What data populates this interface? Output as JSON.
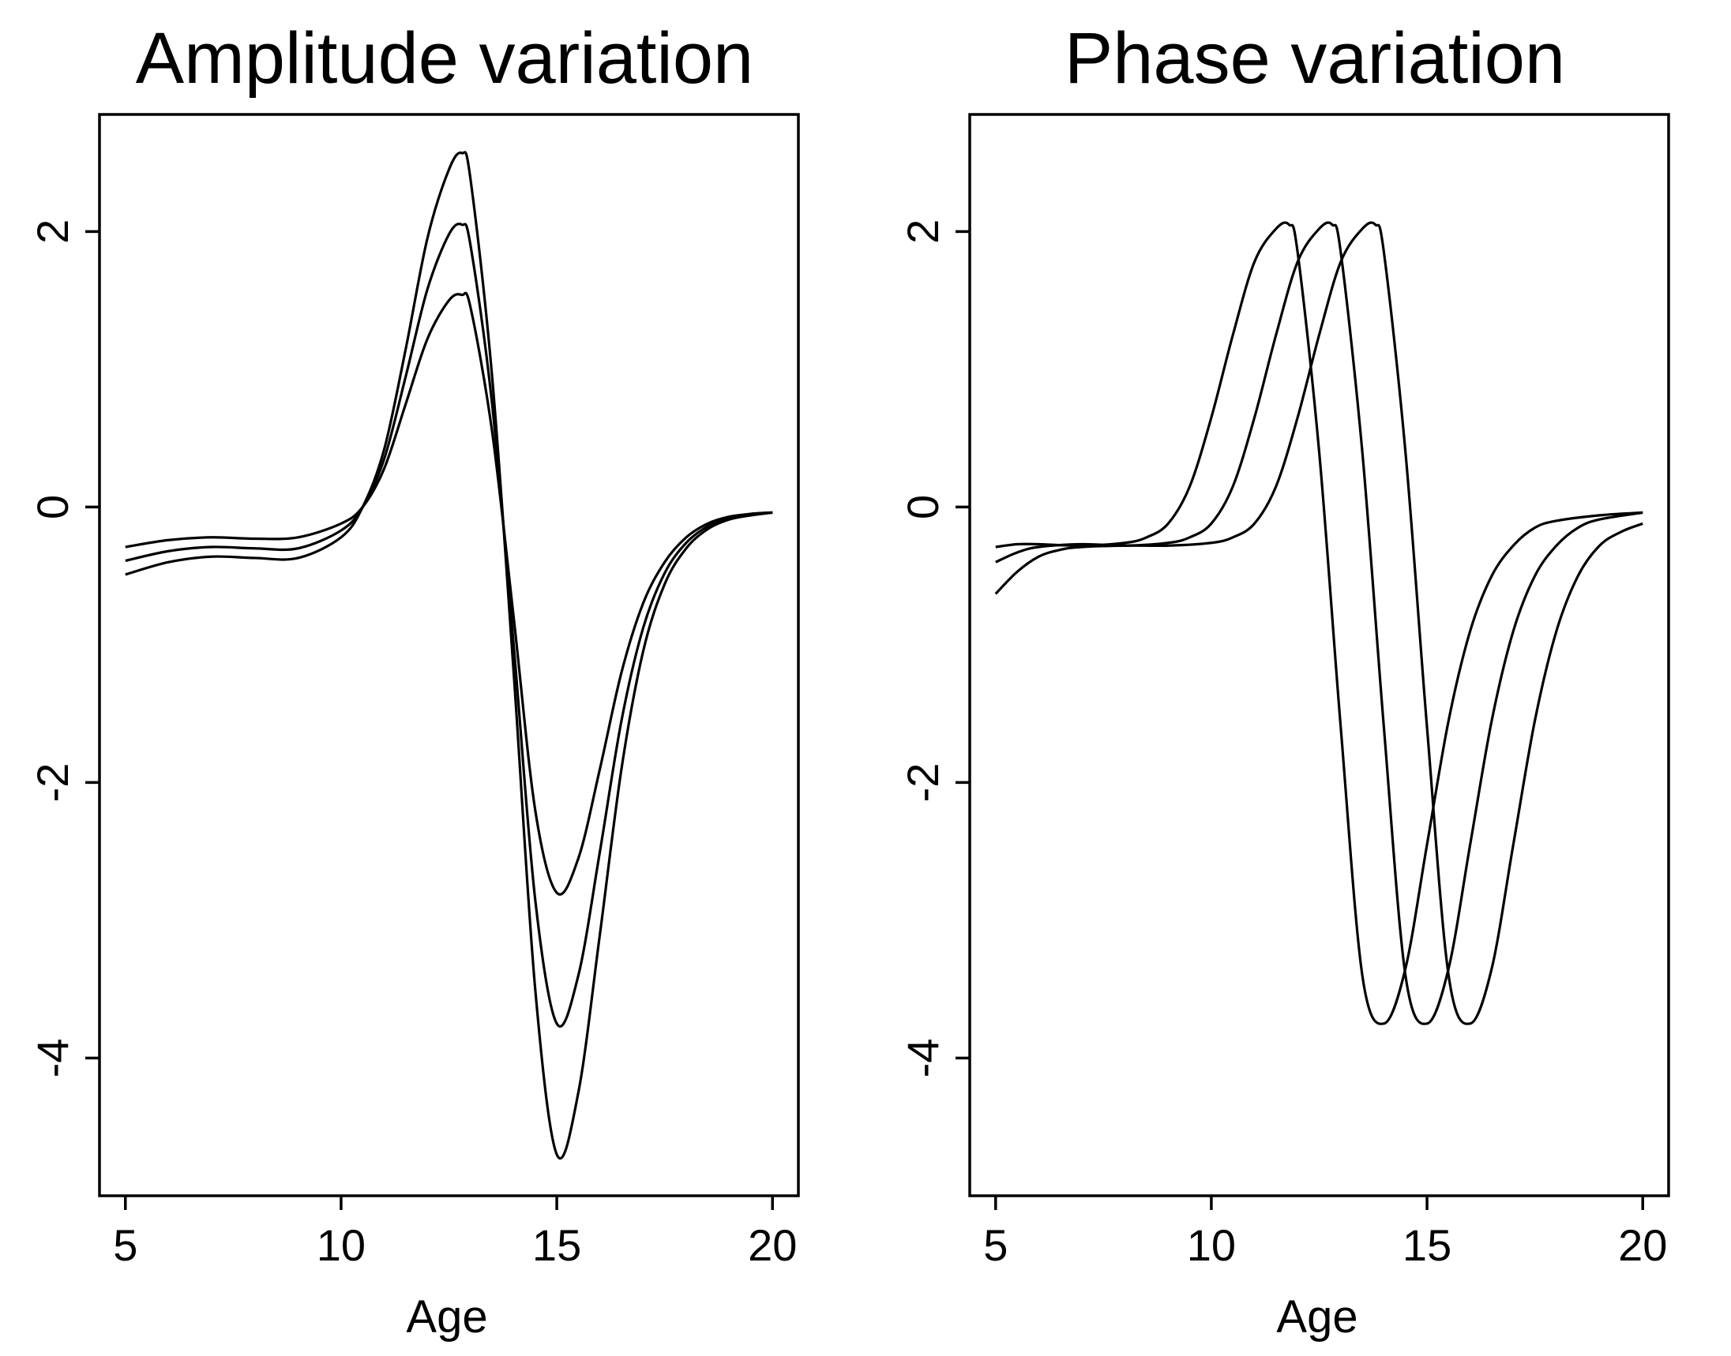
{
  "chart_data": [
    {
      "type": "line",
      "title": "Amplitude variation",
      "xlabel": "Age",
      "ylabel": "",
      "xlim": [
        4.4,
        20.6
      ],
      "ylim": [
        -5.0,
        2.85
      ],
      "xticks": [
        5,
        10,
        15,
        20
      ],
      "xtick_labels": [
        "5",
        "10",
        "15",
        "20"
      ],
      "yticks": [
        2,
        0,
        -2,
        -4
      ],
      "ytick_labels": [
        "2",
        "0",
        "-2",
        "-4"
      ],
      "grid": false,
      "legend": "none",
      "series": [
        {
          "x": [
            5,
            6,
            7,
            8,
            9,
            10,
            10.5,
            11,
            11.5,
            12,
            12.5,
            12.8,
            13,
            13.5,
            14,
            14.5,
            15,
            15.5,
            16,
            16.5,
            17,
            17.5,
            18,
            18.5,
            19,
            19.5,
            20
          ],
          "y": [
            -0.29,
            -0.24,
            -0.22,
            -0.23,
            -0.22,
            -0.12,
            0.0,
            0.28,
            0.75,
            1.22,
            1.5,
            1.54,
            1.45,
            0.55,
            -0.8,
            -2.2,
            -2.8,
            -2.55,
            -1.9,
            -1.2,
            -0.7,
            -0.4,
            -0.22,
            -0.12,
            -0.07,
            -0.05,
            -0.04
          ]
        },
        {
          "x": [
            5,
            6,
            7,
            8,
            9,
            10,
            10.5,
            11,
            11.5,
            12,
            12.5,
            12.8,
            13,
            13.5,
            14,
            14.5,
            15,
            15.5,
            16,
            16.5,
            17,
            17.5,
            18,
            18.5,
            19,
            19.5,
            20
          ],
          "y": [
            -0.39,
            -0.32,
            -0.29,
            -0.3,
            -0.3,
            -0.17,
            0.0,
            0.35,
            0.95,
            1.58,
            1.98,
            2.05,
            1.9,
            0.75,
            -1.0,
            -2.85,
            -3.75,
            -3.4,
            -2.5,
            -1.55,
            -0.88,
            -0.48,
            -0.26,
            -0.14,
            -0.08,
            -0.05,
            -0.04
          ]
        },
        {
          "x": [
            5,
            6,
            7,
            8,
            9,
            10,
            10.5,
            11,
            11.5,
            12,
            12.5,
            12.8,
            13,
            13.5,
            14,
            14.5,
            15,
            15.5,
            16,
            16.5,
            17,
            17.5,
            18,
            18.5,
            19,
            19.5,
            20
          ],
          "y": [
            -0.49,
            -0.4,
            -0.36,
            -0.37,
            -0.37,
            -0.22,
            0.0,
            0.42,
            1.15,
            1.95,
            2.45,
            2.57,
            2.38,
            0.95,
            -1.2,
            -3.5,
            -4.7,
            -4.25,
            -3.1,
            -1.9,
            -1.05,
            -0.56,
            -0.3,
            -0.16,
            -0.09,
            -0.06,
            -0.04
          ]
        }
      ]
    },
    {
      "type": "line",
      "title": "Phase variation",
      "xlabel": "Age",
      "ylabel": "",
      "xlim": [
        4.4,
        20.6
      ],
      "ylim": [
        -5.0,
        2.85
      ],
      "xticks": [
        5,
        10,
        15,
        20
      ],
      "xtick_labels": [
        "5",
        "10",
        "15",
        "20"
      ],
      "yticks": [
        2,
        0,
        -2,
        -4
      ],
      "ytick_labels": [
        "2",
        "0",
        "-2",
        "-4"
      ],
      "grid": false,
      "legend": "none",
      "series": [
        {
          "x": [
            5,
            5.5,
            6,
            7,
            8,
            8.5,
            9,
            9.5,
            10,
            10.5,
            11,
            11.5,
            11.8,
            12,
            12.5,
            13,
            13.5,
            14,
            14.5,
            15,
            15.5,
            16,
            16.5,
            17,
            17.5,
            18,
            19,
            20
          ],
          "y": [
            -0.29,
            -0.27,
            -0.27,
            -0.28,
            -0.26,
            -0.22,
            -0.12,
            0.15,
            0.65,
            1.25,
            1.78,
            2.02,
            2.05,
            1.85,
            0.4,
            -1.6,
            -3.4,
            -3.75,
            -3.35,
            -2.45,
            -1.55,
            -0.9,
            -0.5,
            -0.28,
            -0.15,
            -0.1,
            -0.06,
            -0.04
          ]
        },
        {
          "x": [
            5,
            5.5,
            6,
            7,
            8,
            9,
            9.5,
            10,
            10.5,
            11,
            11.5,
            12,
            12.5,
            12.8,
            13,
            13.5,
            14,
            14.5,
            15,
            15.5,
            16,
            16.5,
            17,
            17.5,
            18,
            18.5,
            19,
            20
          ],
          "y": [
            -0.4,
            -0.33,
            -0.29,
            -0.27,
            -0.28,
            -0.26,
            -0.22,
            -0.12,
            0.15,
            0.65,
            1.25,
            1.78,
            2.02,
            2.05,
            1.85,
            0.4,
            -1.6,
            -3.4,
            -3.75,
            -3.35,
            -2.45,
            -1.55,
            -0.9,
            -0.5,
            -0.28,
            -0.15,
            -0.09,
            -0.04
          ]
        },
        {
          "x": [
            5,
            5.5,
            6,
            6.5,
            7,
            8,
            9,
            10,
            10.5,
            11,
            11.5,
            12,
            12.5,
            13,
            13.5,
            13.8,
            14,
            14.5,
            15,
            15.5,
            16,
            16.5,
            17,
            17.5,
            18,
            18.5,
            19,
            19.5,
            20
          ],
          "y": [
            -0.63,
            -0.47,
            -0.36,
            -0.31,
            -0.29,
            -0.28,
            -0.28,
            -0.26,
            -0.22,
            -0.12,
            0.15,
            0.65,
            1.25,
            1.78,
            2.02,
            2.05,
            1.85,
            0.4,
            -1.6,
            -3.4,
            -3.75,
            -3.35,
            -2.45,
            -1.55,
            -0.9,
            -0.5,
            -0.28,
            -0.18,
            -0.12
          ]
        }
      ]
    }
  ]
}
